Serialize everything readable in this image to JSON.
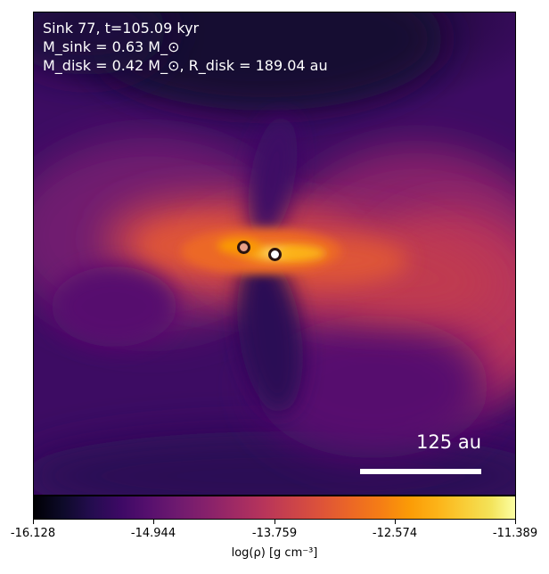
{
  "header": {
    "line1": "Sink 77, t=105.09 kyr",
    "line2": "M_sink = 0.63 M_⊙",
    "line3": "M_disk = 0.42 M_⊙, R_disk = 189.04 au"
  },
  "scalebar": {
    "label": "125 au"
  },
  "colorbar": {
    "ticks": [
      "-16.128",
      "-14.944",
      "-13.759",
      "-12.574",
      "-11.389"
    ],
    "label": "log(ρ) [g cm⁻³]",
    "colormap": "inferno"
  }
}
